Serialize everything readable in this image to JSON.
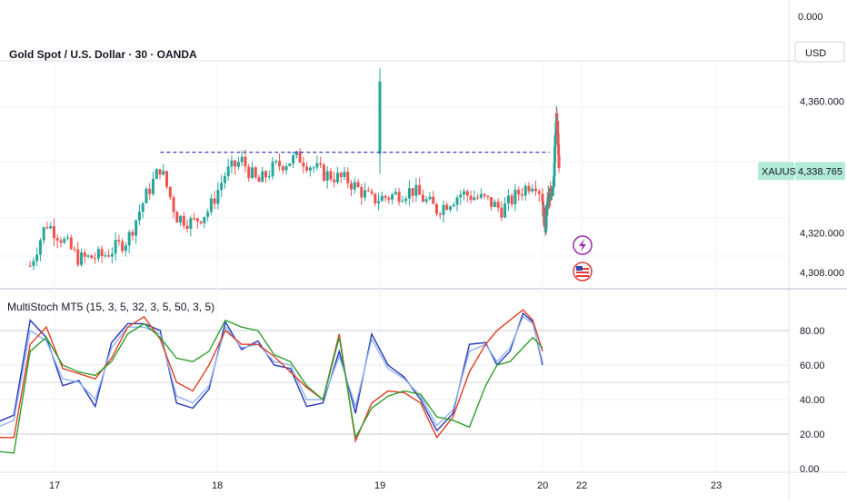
{
  "chart_header": {
    "title": "Gold Spot / U.S. Dollar · 30 · OANDA",
    "currency": "USD",
    "top_value": "0.000"
  },
  "price_badge": {
    "symbol": "XAUUSD",
    "price": "4,338.765",
    "color": "#b2ebd8"
  },
  "indicator": {
    "label": "MultiStoch MT5 (15, 3, 5, 32, 3, 5, 50, 3, 5)"
  },
  "colors": {
    "up": "#26a69a",
    "down": "#ef5350",
    "blue": "#2237b8",
    "light_blue": "#90b4f0",
    "red": "#e23d22",
    "green": "#2ca02c",
    "resistance": "#3f3fbf"
  },
  "icons": [
    "lightning-icon",
    "us-flag-icon"
  ],
  "chart_data": [
    {
      "type": "candlestick",
      "title": "Gold Spot / U.S. Dollar · 30 · OANDA",
      "x_ticks": [
        "17",
        "18",
        "19",
        "20",
        "22",
        "23"
      ],
      "y_ticks": [
        "4,360.000",
        "4,320.000",
        "4,308.000"
      ],
      "ylim": [
        4303,
        4372
      ],
      "resistance_line": {
        "y": 4344.5,
        "from": "17.65",
        "to": "20.35",
        "style": "dashed"
      },
      "last_price": 4338.765,
      "close_path": [
        [
          16.85,
          4310
        ],
        [
          16.95,
          4323
        ],
        [
          17.05,
          4318
        ],
        [
          17.15,
          4312
        ],
        [
          17.3,
          4313
        ],
        [
          17.45,
          4318
        ],
        [
          17.55,
          4330
        ],
        [
          17.65,
          4340
        ],
        [
          17.75,
          4325
        ],
        [
          17.85,
          4323
        ],
        [
          17.95,
          4327
        ],
        [
          18.05,
          4338
        ],
        [
          18.15,
          4342
        ],
        [
          18.25,
          4335
        ],
        [
          18.35,
          4340
        ],
        [
          18.5,
          4343
        ],
        [
          18.65,
          4338
        ],
        [
          18.8,
          4336
        ],
        [
          18.95,
          4330
        ],
        [
          19.05,
          4331
        ],
        [
          19.2,
          4333
        ],
        [
          19.35,
          4327
        ],
        [
          19.5,
          4332
        ],
        [
          19.65,
          4330
        ],
        [
          19.75,
          4327
        ],
        [
          19.85,
          4332
        ],
        [
          19.95,
          4336
        ],
        [
          20.05,
          4326
        ],
        [
          20.15,
          4322
        ],
        [
          20.25,
          4329
        ],
        [
          20.35,
          4331
        ],
        [
          20.45,
          4332
        ],
        [
          20.5,
          4330
        ],
        [
          20.58,
          4337
        ],
        [
          20.65,
          4351
        ],
        [
          20.72,
          4355
        ],
        [
          20.78,
          4350
        ],
        [
          20.82,
          4342
        ],
        [
          20.86,
          4338.765
        ]
      ],
      "spikes": [
        {
          "x": 19.0,
          "low": 4338,
          "high": 4370
        }
      ]
    },
    {
      "type": "line",
      "title": "MultiStoch MT5 (15, 3, 5, 32, 3, 5, 50, 3, 5)",
      "x_ticks": [
        "17",
        "18",
        "19",
        "20",
        "22",
        "23"
      ],
      "y_ticks": [
        "80.00",
        "60.00",
        "40.00",
        "20.00",
        "0.00"
      ],
      "ylim": [
        0,
        100
      ],
      "series": [
        {
          "color": "#2237b8",
          "values": [
            [
              16.65,
              27
            ],
            [
              16.75,
              31
            ],
            [
              16.85,
              86
            ],
            [
              16.95,
              76
            ],
            [
              17.05,
              48
            ],
            [
              17.15,
              51
            ],
            [
              17.25,
              36
            ],
            [
              17.35,
              73
            ],
            [
              17.45,
              84
            ],
            [
              17.55,
              84
            ],
            [
              17.65,
              80
            ],
            [
              17.75,
              38
            ],
            [
              17.85,
              35
            ],
            [
              17.95,
              46
            ],
            [
              18.05,
              85
            ],
            [
              18.15,
              69
            ],
            [
              18.25,
              74
            ],
            [
              18.35,
              60
            ],
            [
              18.45,
              58
            ],
            [
              18.55,
              36
            ],
            [
              18.65,
              38
            ],
            [
              18.75,
              68
            ],
            [
              18.85,
              32
            ],
            [
              18.95,
              78
            ],
            [
              19.05,
              60
            ],
            [
              19.15,
              53
            ],
            [
              19.25,
              40
            ],
            [
              19.35,
              22
            ],
            [
              19.45,
              32
            ],
            [
              19.55,
              72
            ],
            [
              19.65,
              73
            ],
            [
              19.72,
              60
            ],
            [
              19.8,
              68
            ],
            [
              19.88,
              90
            ],
            [
              19.94,
              85
            ],
            [
              20.0,
              60
            ]
          ]
        },
        {
          "color": "#90b4f0",
          "values": [
            [
              16.65,
              24
            ],
            [
              16.75,
              28
            ],
            [
              16.85,
              80
            ],
            [
              16.95,
              74
            ],
            [
              17.05,
              52
            ],
            [
              17.15,
              50
            ],
            [
              17.25,
              40
            ],
            [
              17.35,
              70
            ],
            [
              17.45,
              82
            ],
            [
              17.55,
              82
            ],
            [
              17.65,
              78
            ],
            [
              17.75,
              42
            ],
            [
              17.85,
              38
            ],
            [
              17.95,
              48
            ],
            [
              18.05,
              82
            ],
            [
              18.15,
              70
            ],
            [
              18.25,
              72
            ],
            [
              18.35,
              62
            ],
            [
              18.45,
              60
            ],
            [
              18.55,
              40
            ],
            [
              18.65,
              40
            ],
            [
              18.75,
              65
            ],
            [
              18.85,
              36
            ],
            [
              18.95,
              75
            ],
            [
              19.05,
              58
            ],
            [
              19.15,
              52
            ],
            [
              19.25,
              42
            ],
            [
              19.35,
              25
            ],
            [
              19.45,
              34
            ],
            [
              19.55,
              68
            ],
            [
              19.65,
              72
            ],
            [
              19.72,
              62
            ],
            [
              19.8,
              70
            ],
            [
              19.88,
              88
            ],
            [
              19.94,
              84
            ],
            [
              20.0,
              62
            ]
          ]
        },
        {
          "color": "#e23d22",
          "values": [
            [
              16.65,
              18
            ],
            [
              16.75,
              18
            ],
            [
              16.85,
              72
            ],
            [
              16.95,
              82
            ],
            [
              17.05,
              58
            ],
            [
              17.15,
              55
            ],
            [
              17.25,
              52
            ],
            [
              17.35,
              64
            ],
            [
              17.45,
              82
            ],
            [
              17.55,
              88
            ],
            [
              17.65,
              75
            ],
            [
              17.75,
              50
            ],
            [
              17.85,
              45
            ],
            [
              17.95,
              60
            ],
            [
              18.05,
              80
            ],
            [
              18.15,
              72
            ],
            [
              18.25,
              72
            ],
            [
              18.35,
              65
            ],
            [
              18.45,
              56
            ],
            [
              18.55,
              47
            ],
            [
              18.65,
              40
            ],
            [
              18.75,
              78
            ],
            [
              18.85,
              16
            ],
            [
              18.95,
              38
            ],
            [
              19.05,
              45
            ],
            [
              19.15,
              44
            ],
            [
              19.25,
              38
            ],
            [
              19.35,
              18
            ],
            [
              19.45,
              30
            ],
            [
              19.55,
              56
            ],
            [
              19.65,
              72
            ],
            [
              19.72,
              80
            ],
            [
              19.8,
              86
            ],
            [
              19.88,
              92
            ],
            [
              19.94,
              86
            ],
            [
              20.0,
              68
            ]
          ]
        },
        {
          "color": "#2ca02c",
          "values": [
            [
              16.65,
              10
            ],
            [
              16.75,
              9
            ],
            [
              16.85,
              68
            ],
            [
              16.95,
              76
            ],
            [
              17.05,
              60
            ],
            [
              17.15,
              56
            ],
            [
              17.25,
              54
            ],
            [
              17.35,
              62
            ],
            [
              17.45,
              78
            ],
            [
              17.55,
              84
            ],
            [
              17.65,
              76
            ],
            [
              17.75,
              64
            ],
            [
              17.85,
              62
            ],
            [
              17.95,
              68
            ],
            [
              18.05,
              86
            ],
            [
              18.15,
              82
            ],
            [
              18.25,
              80
            ],
            [
              18.35,
              66
            ],
            [
              18.45,
              62
            ],
            [
              18.55,
              48
            ],
            [
              18.65,
              40
            ],
            [
              18.75,
              76
            ],
            [
              18.85,
              18
            ],
            [
              18.95,
              35
            ],
            [
              19.05,
              42
            ],
            [
              19.15,
              45
            ],
            [
              19.25,
              43
            ],
            [
              19.35,
              30
            ],
            [
              19.45,
              28
            ],
            [
              19.55,
              24
            ],
            [
              19.65,
              48
            ],
            [
              19.72,
              60
            ],
            [
              19.8,
              62
            ],
            [
              19.88,
              70
            ],
            [
              19.94,
              76
            ],
            [
              20.0,
              70
            ]
          ]
        }
      ]
    }
  ]
}
